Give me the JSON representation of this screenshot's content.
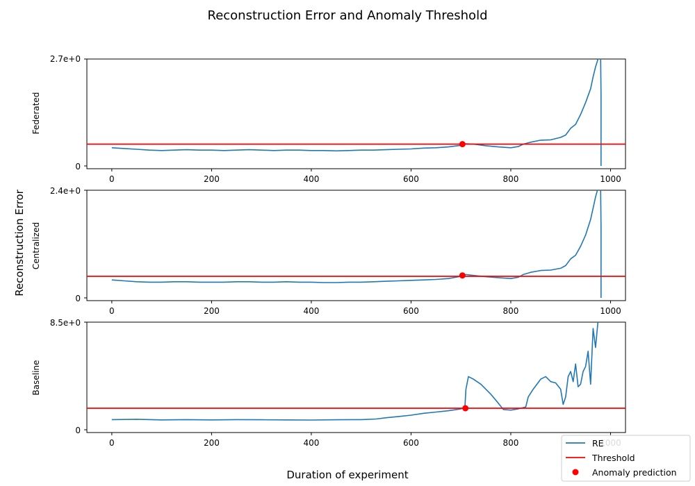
{
  "chart_data": {
    "type": "line",
    "title": "Reconstruction Error and Anomaly Threshold",
    "xlabel": "Duration of experiment",
    "ylabel": "Reconstruction Error",
    "legend": {
      "position": "bottom-right",
      "entries": [
        "RE",
        "Threshold",
        "Anomaly prediction"
      ]
    },
    "colors": {
      "re": "#1f77b4",
      "threshold": "#ff0000",
      "anomaly": "#ff0000"
    },
    "xlim": [
      -50,
      1030
    ],
    "xticks": [
      0,
      200,
      400,
      600,
      800,
      1000
    ],
    "xtick_labels": [
      "0",
      "200",
      "400",
      "600",
      "800",
      "1000"
    ],
    "panels": [
      {
        "name": "Federated",
        "ylim": [
          0,
          2.7
        ],
        "ytick_labels": [
          "0",
          "2.7e+0"
        ],
        "threshold": 0.55,
        "anomaly": {
          "x": 703,
          "y": 0.55
        },
        "re": {
          "x": [
            0,
            25,
            50,
            75,
            100,
            125,
            150,
            175,
            200,
            225,
            250,
            275,
            300,
            325,
            350,
            375,
            400,
            425,
            450,
            475,
            500,
            525,
            550,
            575,
            600,
            625,
            650,
            675,
            700,
            710,
            725,
            750,
            775,
            800,
            815,
            825,
            840,
            860,
            880,
            900,
            910,
            920,
            930,
            940,
            950,
            960,
            965,
            970,
            975,
            980,
            981,
            981
          ],
          "y": [
            0.46,
            0.44,
            0.42,
            0.4,
            0.39,
            0.4,
            0.41,
            0.4,
            0.4,
            0.39,
            0.4,
            0.41,
            0.4,
            0.39,
            0.4,
            0.4,
            0.39,
            0.39,
            0.38,
            0.39,
            0.4,
            0.4,
            0.41,
            0.42,
            0.43,
            0.45,
            0.46,
            0.48,
            0.52,
            0.56,
            0.55,
            0.51,
            0.48,
            0.46,
            0.49,
            0.55,
            0.6,
            0.65,
            0.66,
            0.72,
            0.78,
            0.95,
            1.05,
            1.3,
            1.6,
            1.95,
            2.25,
            2.5,
            2.7,
            2.95,
            1.8,
            0.0
          ]
        }
      },
      {
        "name": "Centralized",
        "ylim": [
          0,
          2.4
        ],
        "ytick_labels": [
          "0",
          "2.4e+0"
        ],
        "threshold": 0.48,
        "anomaly": {
          "x": 703,
          "y": 0.5
        },
        "re": {
          "x": [
            0,
            25,
            50,
            75,
            100,
            125,
            150,
            175,
            200,
            225,
            250,
            275,
            300,
            325,
            350,
            375,
            400,
            425,
            450,
            475,
            500,
            525,
            550,
            575,
            600,
            625,
            650,
            675,
            700,
            710,
            725,
            750,
            775,
            800,
            815,
            825,
            840,
            860,
            880,
            900,
            910,
            920,
            930,
            940,
            950,
            960,
            965,
            970,
            975,
            980,
            981,
            981
          ],
          "y": [
            0.4,
            0.38,
            0.36,
            0.35,
            0.35,
            0.36,
            0.36,
            0.35,
            0.35,
            0.35,
            0.36,
            0.36,
            0.35,
            0.35,
            0.36,
            0.35,
            0.35,
            0.34,
            0.34,
            0.35,
            0.35,
            0.36,
            0.37,
            0.38,
            0.39,
            0.4,
            0.41,
            0.43,
            0.48,
            0.52,
            0.5,
            0.47,
            0.45,
            0.43,
            0.46,
            0.52,
            0.57,
            0.61,
            0.62,
            0.66,
            0.72,
            0.87,
            0.95,
            1.15,
            1.4,
            1.75,
            2.0,
            2.25,
            2.45,
            2.6,
            1.6,
            0.0
          ]
        }
      },
      {
        "name": "Baseline",
        "ylim": [
          0,
          8.5
        ],
        "ytick_labels": [
          "0",
          "8.5e+0"
        ],
        "threshold": 1.7,
        "anomaly": {
          "x": 709,
          "y": 1.7
        },
        "re": {
          "x": [
            0,
            50,
            100,
            150,
            200,
            250,
            300,
            350,
            400,
            450,
            500,
            530,
            550,
            575,
            600,
            625,
            650,
            675,
            700,
            708,
            710,
            715,
            725,
            740,
            760,
            775,
            785,
            800,
            815,
            830,
            835,
            845,
            860,
            870,
            880,
            890,
            900,
            905,
            910,
            915,
            920,
            925,
            930,
            935,
            940,
            945,
            950,
            955,
            960,
            965,
            970,
            975,
            980
          ],
          "y": [
            0.8,
            0.83,
            0.78,
            0.8,
            0.78,
            0.8,
            0.79,
            0.78,
            0.77,
            0.79,
            0.8,
            0.85,
            0.95,
            1.05,
            1.15,
            1.3,
            1.4,
            1.5,
            1.65,
            1.75,
            3.2,
            4.2,
            4.0,
            3.6,
            2.8,
            2.1,
            1.6,
            1.55,
            1.65,
            1.8,
            2.6,
            3.2,
            4.0,
            4.2,
            3.8,
            3.7,
            3.2,
            2.0,
            2.6,
            4.2,
            4.6,
            3.8,
            5.2,
            3.4,
            3.6,
            4.6,
            5.0,
            6.2,
            3.6,
            8.0,
            6.5,
            8.6,
            9.5
          ]
        }
      }
    ]
  }
}
